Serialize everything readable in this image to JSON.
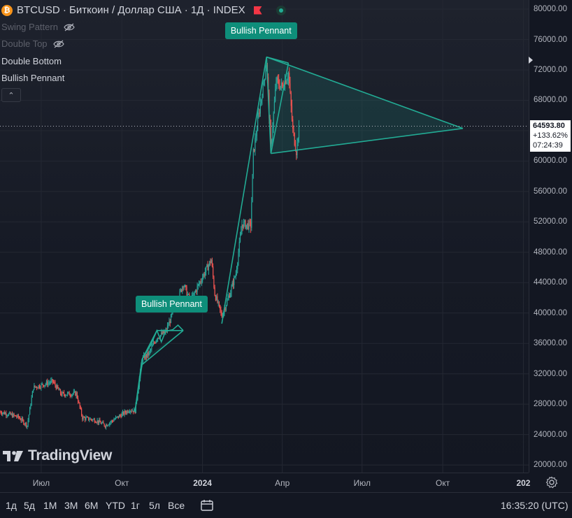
{
  "header": {
    "symbol_line": "BTCUSD · Биткоин / Доллар США · 1Д · INDEX",
    "coin_glyph": "₿",
    "flag_color": "#f23645",
    "status_color": "#22ab94"
  },
  "indicators": [
    {
      "label": "Swing Pattern",
      "hidden": true,
      "icon": "eye-off-icon"
    },
    {
      "label": "Double Top",
      "hidden": true,
      "icon": "eye-off-icon"
    },
    {
      "label": "Double Bottom",
      "hidden": false
    },
    {
      "label": "Bullish Pennant",
      "hidden": false
    }
  ],
  "collapse_glyph": "⌃",
  "pattern_labels": [
    {
      "text": "Bullish Pennant",
      "color": "#0e8e7a"
    },
    {
      "text": "Bullish Pennant",
      "color": "#0e8e7a"
    }
  ],
  "logo": {
    "mark": "17",
    "text": "TradingView"
  },
  "last_price": {
    "price": "64593.80",
    "change": "+133.62%",
    "countdown": "07:24:39"
  },
  "time_range_buttons": [
    "1д",
    "5д",
    "1M",
    "3M",
    "6M",
    "YTD",
    "1г",
    "5л",
    "Все"
  ],
  "clock": "16:35:20 (UTC)",
  "chart_data": {
    "type": "candlestick",
    "symbol": "BTCUSD",
    "interval": "1Д",
    "y_axis": {
      "ticks": [
        "80000.00",
        "76000.00",
        "72000.00",
        "68000.00",
        "64000.00",
        "60000.00",
        "56000.00",
        "52000.00",
        "48000.00",
        "44000.00",
        "40000.00",
        "36000.00",
        "32000.00",
        "28000.00",
        "24000.00",
        "20000.00"
      ],
      "ylim": [
        19000,
        81200
      ]
    },
    "x_axis": {
      "ticks": [
        {
          "label": "Июл",
          "date": "2023-07-01",
          "strong": false
        },
        {
          "label": "Окт",
          "date": "2023-10-01",
          "strong": false
        },
        {
          "label": "2024",
          "date": "2024-01-01",
          "strong": true
        },
        {
          "label": "Апр",
          "date": "2024-04-01",
          "strong": false
        },
        {
          "label": "Июл",
          "date": "2024-07-01",
          "strong": false
        },
        {
          "label": "Окт",
          "date": "2024-10-01",
          "strong": false
        },
        {
          "label": "202",
          "date": "2025-01-01",
          "strong": true
        }
      ],
      "xlim": [
        "2023-05-15",
        "2025-01-07"
      ]
    },
    "last_price": 64593.8,
    "colors": {
      "up": "#26a69a",
      "down": "#ef5350",
      "pattern": "#22ab94"
    },
    "price_path": [
      [
        "2023-05-15",
        27000
      ],
      [
        "2023-06-05",
        26300
      ],
      [
        "2023-06-15",
        25200
      ],
      [
        "2023-06-22",
        30200
      ],
      [
        "2023-07-01",
        30500
      ],
      [
        "2023-07-14",
        31000
      ],
      [
        "2023-07-24",
        29300
      ],
      [
        "2023-08-10",
        29400
      ],
      [
        "2023-08-17",
        26200
      ],
      [
        "2023-09-01",
        25900
      ],
      [
        "2023-09-12",
        25200
      ],
      [
        "2023-09-25",
        26200
      ],
      [
        "2023-10-10",
        27300
      ],
      [
        "2023-10-16",
        27100
      ],
      [
        "2023-10-24",
        33900
      ],
      [
        "2023-11-01",
        34700
      ],
      [
        "2023-11-10",
        36800
      ],
      [
        "2023-11-20",
        37500
      ],
      [
        "2023-12-04",
        41800
      ],
      [
        "2023-12-10",
        43900
      ],
      [
        "2023-12-18",
        41500
      ],
      [
        "2024-01-02",
        45000
      ],
      [
        "2024-01-11",
        47000
      ],
      [
        "2024-01-15",
        42500
      ],
      [
        "2024-01-23",
        39600
      ],
      [
        "2024-02-01",
        42500
      ],
      [
        "2024-02-08",
        45200
      ],
      [
        "2024-02-15",
        51700
      ],
      [
        "2024-02-25",
        51500
      ],
      [
        "2024-02-28",
        61000
      ],
      [
        "2024-03-05",
        66000
      ],
      [
        "2024-03-08",
        68300
      ],
      [
        "2024-03-14",
        73000
      ],
      [
        "2024-03-19",
        61800
      ],
      [
        "2024-03-25",
        70500
      ],
      [
        "2024-04-01",
        69700
      ],
      [
        "2024-04-08",
        71600
      ],
      [
        "2024-04-13",
        64000
      ],
      [
        "2024-04-17",
        61300
      ],
      [
        "2024-04-20",
        64593.8
      ]
    ],
    "patterns": [
      {
        "name": "Bullish Pennant",
        "label_date": "2023-11-24",
        "label_price": 41000,
        "lines": [
          [
            [
              "2023-10-24",
              33900
            ],
            [
              "2023-11-10",
              37700
            ]
          ],
          [
            [
              "2023-10-24",
              33200
            ],
            [
              "2023-12-10",
              37700
            ]
          ],
          [
            [
              "2023-11-10",
              37700
            ],
            [
              "2023-12-10",
              37700
            ]
          ],
          [
            [
              "2023-10-16",
              27100
            ],
            [
              "2023-10-24",
              33900
            ]
          ]
        ],
        "zigzag": [
          [
            "2023-10-24",
            33900
          ],
          [
            "2023-11-03",
            35800
          ],
          [
            "2023-11-10",
            37700
          ],
          [
            "2023-11-15",
            36200
          ],
          [
            "2023-11-20",
            37600
          ],
          [
            "2023-11-28",
            37800
          ],
          [
            "2023-12-04",
            38400
          ],
          [
            "2023-12-10",
            37700
          ]
        ]
      },
      {
        "name": "Bullish Pennant",
        "label_date": "2024-03-05",
        "label_price": 77000,
        "lines": [
          [
            [
              "2024-03-14",
              73700
            ],
            [
              "2024-10-24",
              64300
            ]
          ],
          [
            [
              "2024-03-19",
              61000
            ],
            [
              "2024-10-24",
              64300
            ]
          ],
          [
            [
              "2024-03-14",
              73700
            ],
            [
              "2024-04-08",
              72900
            ]
          ],
          [
            [
              "2024-03-14",
              73700
            ],
            [
              "2024-03-19",
              61000
            ]
          ],
          [
            [
              "2024-01-23",
              38600
            ],
            [
              "2024-03-14",
              73700
            ]
          ],
          [
            [
              "2024-03-19",
              61000
            ],
            [
              "2024-04-08",
              72900
            ]
          ]
        ]
      },
      {
        "name": "Pre-breakout leg",
        "lines": [
          [
            [
              "2023-10-16",
              27000
            ],
            [
              "2023-10-24",
              33200
            ]
          ]
        ]
      }
    ]
  }
}
